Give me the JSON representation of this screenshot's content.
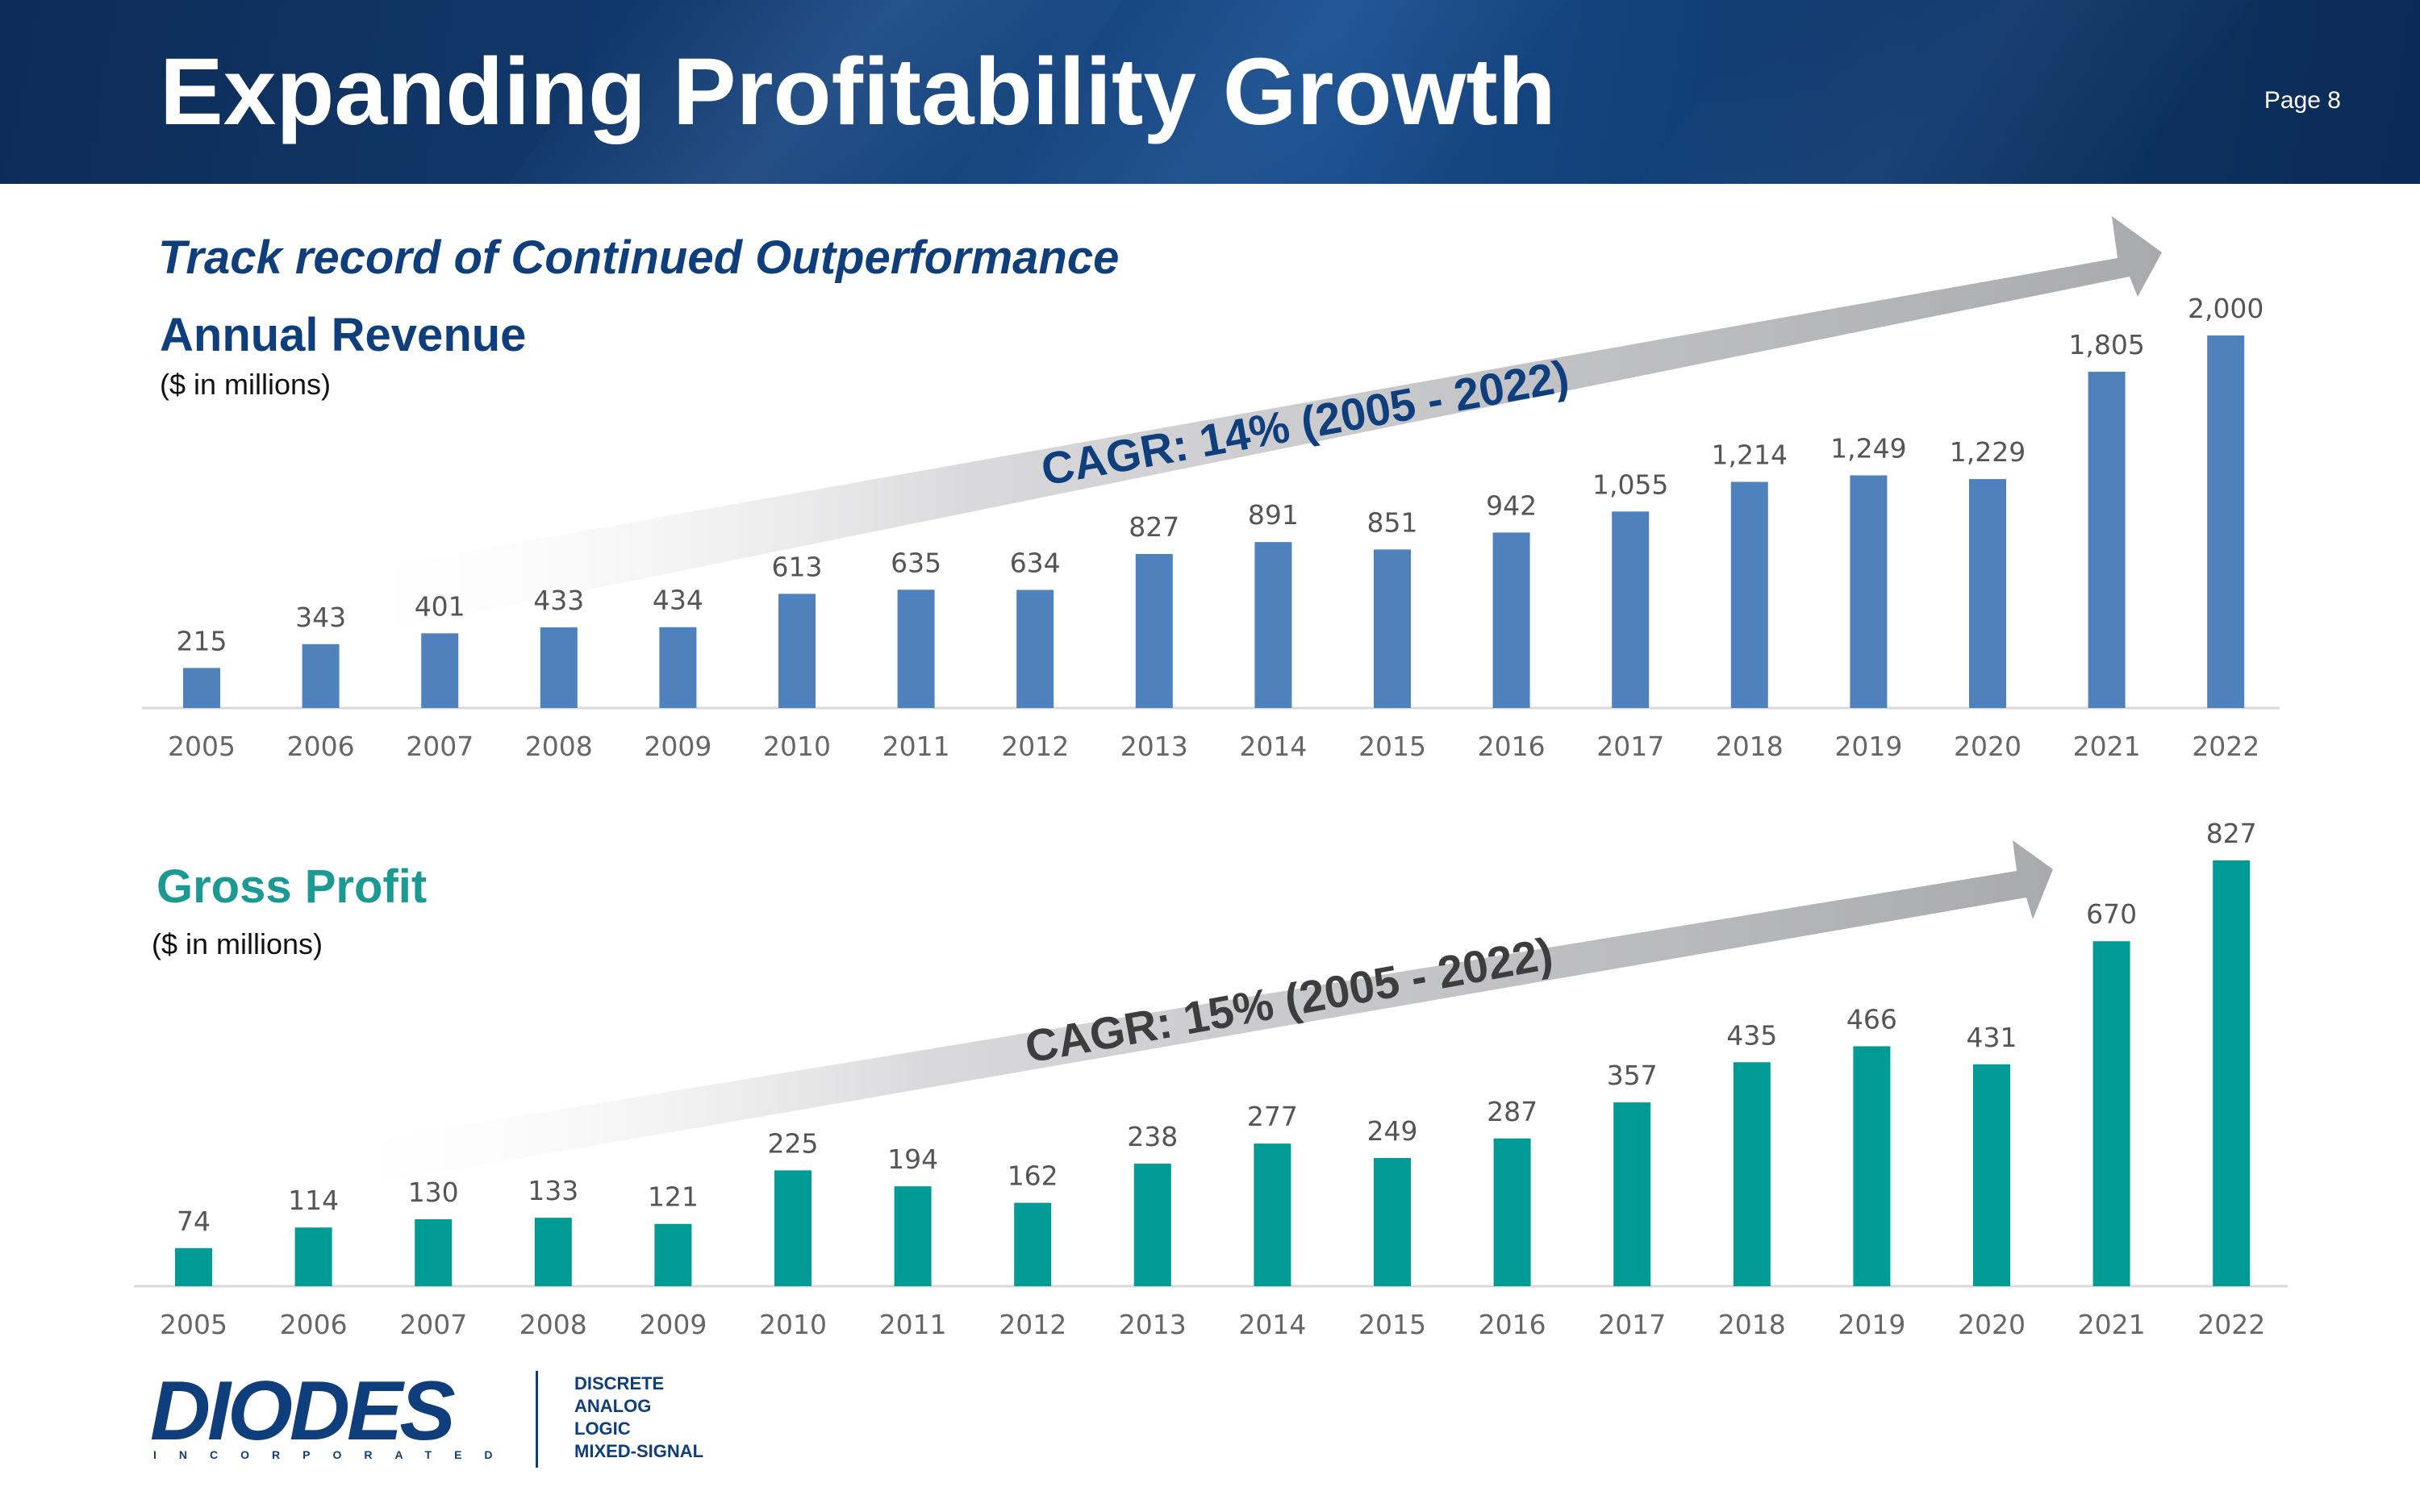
{
  "header": {
    "title": "Expanding Profitability Growth",
    "page": "Page 8"
  },
  "subtitle": "Track record of Continued Outperformance",
  "brand": {
    "name": "DIODES",
    "tagline": "INCORPORATED",
    "segments": [
      "DISCRETE",
      "ANALOG",
      "LOGIC",
      "MIXED-SIGNAL"
    ],
    "primary_color": "#0f3e7d"
  },
  "chart_data": [
    {
      "type": "bar",
      "title": "Annual Revenue",
      "units": "($ in millions)",
      "categories": [
        "2005",
        "2006",
        "2007",
        "2008",
        "2009",
        "2010",
        "2011",
        "2012",
        "2013",
        "2014",
        "2015",
        "2016",
        "2017",
        "2018",
        "2019",
        "2020",
        "2021",
        "2022"
      ],
      "values": [
        215,
        343,
        401,
        433,
        434,
        613,
        635,
        634,
        827,
        891,
        851,
        942,
        1055,
        1214,
        1249,
        1229,
        1805,
        2000
      ],
      "value_labels": [
        "215",
        "343",
        "401",
        "433",
        "434",
        "613",
        "635",
        "634",
        "827",
        "891",
        "851",
        "942",
        "1,055",
        "1,214",
        "1,249",
        "1,229",
        "1,805",
        "2,000"
      ],
      "color": "#4f81bd",
      "title_color": "#0f3e7d",
      "annotation": "CAGR: 14% (2005 - 2022)",
      "annotation_color": "#0f3e7d",
      "ylim": [
        0,
        2000
      ]
    },
    {
      "type": "bar",
      "title": "Gross Profit",
      "units": "($ in millions)",
      "categories": [
        "2005",
        "2006",
        "2007",
        "2008",
        "2009",
        "2010",
        "2011",
        "2012",
        "2013",
        "2014",
        "2015",
        "2016",
        "2017",
        "2018",
        "2019",
        "2020",
        "2021",
        "2022"
      ],
      "values": [
        74,
        114,
        130,
        133,
        121,
        225,
        194,
        162,
        238,
        277,
        249,
        287,
        357,
        435,
        466,
        431,
        670,
        827
      ],
      "value_labels": [
        "74",
        "114",
        "130",
        "133",
        "121",
        "225",
        "194",
        "162",
        "238",
        "277",
        "249",
        "287",
        "357",
        "435",
        "466",
        "431",
        "670",
        "827"
      ],
      "color": "#009b94",
      "title_color": "#1a9a93",
      "annotation": "CAGR: 15% (2005 - 2022)",
      "annotation_color": "#3d3d3d",
      "ylim": [
        0,
        827
      ]
    }
  ]
}
